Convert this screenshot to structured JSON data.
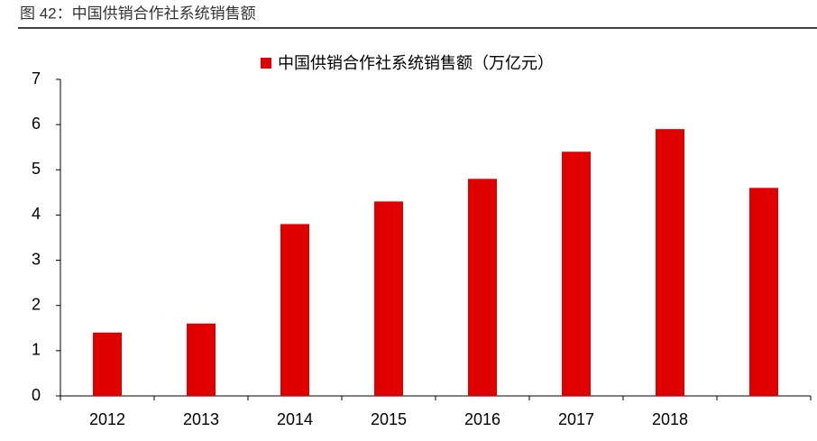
{
  "chart_data": {
    "type": "bar",
    "title": "图 42：中国供销合作社系统销售额",
    "categories": [
      "2012",
      "2013",
      "2014",
      "2015",
      "2016",
      "2017",
      "2018",
      null
    ],
    "series": [
      {
        "name": "中国供销合作社系统销售额（万亿元）",
        "color": "#e00000",
        "values": [
          1.4,
          1.6,
          3.8,
          4.3,
          4.8,
          5.4,
          5.9,
          4.6
        ]
      }
    ],
    "ylim": [
      0,
      7
    ],
    "yticks": [
      0,
      1,
      2,
      3,
      4,
      5,
      6,
      7
    ],
    "legend": "top"
  }
}
